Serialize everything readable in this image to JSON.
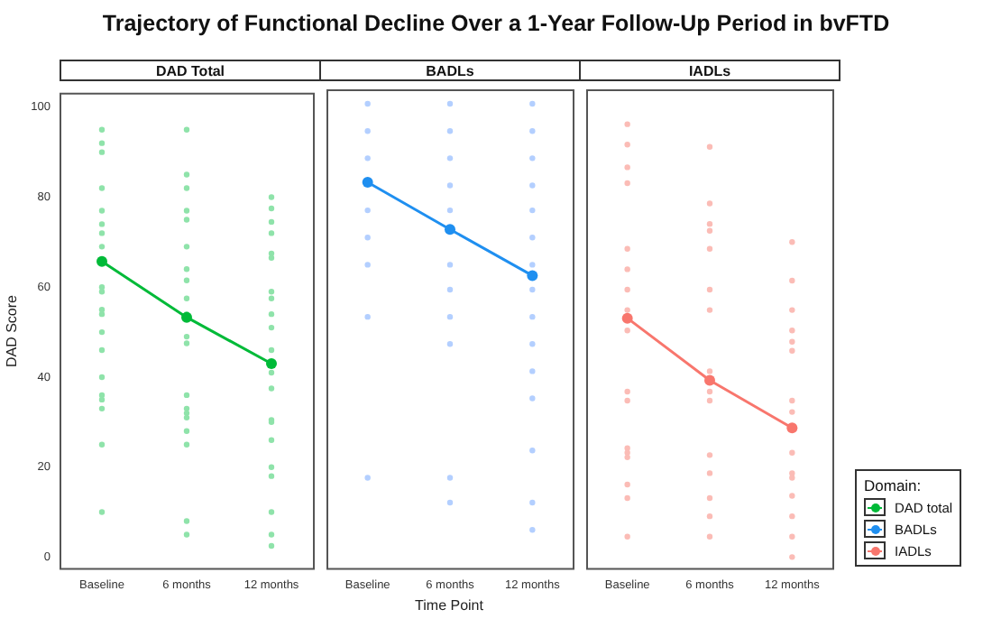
{
  "chart_data": [
    {
      "type": "line",
      "title": "Trajectory of Functional Decline Over a 1-Year Follow-Up Period in bvFTD",
      "subtitle": "DAD Total",
      "ylabel": "DAD Score",
      "categories": [
        "Baseline",
        "6 months",
        "12 months"
      ],
      "ylim": [
        -2.6,
        103
      ],
      "yticks": [
        0,
        20,
        40,
        60,
        80,
        100
      ],
      "marker": "circle",
      "series": [
        {
          "type": "scatter",
          "color": "#8fe3aa",
          "x": [
            "Baseline",
            "Baseline",
            "Baseline",
            "Baseline",
            "Baseline",
            "Baseline",
            "Baseline",
            "Baseline",
            "Baseline",
            "Baseline",
            "Baseline",
            "Baseline",
            "Baseline",
            "Baseline",
            "Baseline",
            "Baseline",
            "Baseline",
            "Baseline",
            "Baseline",
            "Baseline",
            "6 months",
            "6 months",
            "6 months",
            "6 months",
            "6 months",
            "6 months",
            "6 months",
            "6 months",
            "6 months",
            "6 months",
            "6 months",
            "6 months",
            "6 months",
            "6 months",
            "6 months",
            "6 months",
            "6 months",
            "6 months",
            "6 months",
            "6 months",
            "12 months",
            "12 months",
            "12 months",
            "12 months",
            "12 months",
            "12 months",
            "12 months",
            "12 months",
            "12 months",
            "12 months",
            "12 months",
            "12 months",
            "12 months",
            "12 months",
            "12 months",
            "12 months",
            "12 months",
            "12 months",
            "12 months",
            "12 months",
            "12 months"
          ],
          "values": [
            95,
            92,
            90,
            82,
            77,
            74,
            72,
            69,
            60,
            59,
            55,
            54,
            50,
            46,
            40,
            36,
            35,
            33,
            25,
            10,
            95,
            85,
            82,
            77,
            75,
            69,
            64,
            61.5,
            57.5,
            54,
            49,
            47.5,
            36,
            33,
            32,
            31,
            28,
            25,
            8,
            5,
            80,
            77.5,
            74.5,
            72,
            67.5,
            66.5,
            59,
            57.5,
            54,
            51,
            46,
            41,
            37.5,
            30.5,
            30,
            26,
            20,
            18,
            10,
            5,
            2.5
          ]
        },
        {
          "type": "line",
          "name": "DAD total",
          "color": "#00ba38",
          "values": [
            65.7,
            53.3,
            43
          ]
        }
      ]
    },
    {
      "type": "line",
      "subtitle": "BADLs",
      "xlabel": "Time Point",
      "categories": [
        "Baseline",
        "6 months",
        "12 months"
      ],
      "ylim": [
        -2.6,
        103
      ],
      "yticks": [
        0,
        20,
        40,
        60,
        80,
        100
      ],
      "tick_labels": "x",
      "marker": "circle",
      "series": [
        {
          "type": "scatter",
          "color": "#b3cfff",
          "x": [
            "Baseline",
            "Baseline",
            "Baseline",
            "Baseline",
            "Baseline",
            "Baseline",
            "Baseline",
            "Baseline",
            "6 months",
            "6 months",
            "6 months",
            "6 months",
            "6 months",
            "6 months",
            "6 months",
            "6 months",
            "6 months",
            "6 months",
            "6 months",
            "12 months",
            "12 months",
            "12 months",
            "12 months",
            "12 months",
            "12 months",
            "12 months",
            "12 months",
            "12 months",
            "12 months",
            "12 months",
            "12 months",
            "12 months",
            "12 months",
            "12 months"
          ],
          "values": [
            100,
            94,
            88,
            76.5,
            70.5,
            64.5,
            53,
            17.5,
            100,
            94,
            88,
            82,
            76.5,
            64.5,
            59,
            53,
            47,
            17.5,
            12,
            100,
            94,
            88,
            82,
            76.5,
            70.5,
            64.5,
            59,
            53,
            47,
            41,
            35,
            23.5,
            12,
            6
          ]
        },
        {
          "type": "line",
          "name": "BADLs",
          "color": "#1f8ff0",
          "values": [
            82.7,
            72.3,
            62.1
          ]
        }
      ]
    },
    {
      "type": "line",
      "subtitle": "IADLs",
      "legend_title": "Domain:",
      "legend": "right",
      "categories": [
        "Baseline",
        "6 months",
        "12 months"
      ],
      "ylim": [
        -2.6,
        103
      ],
      "yticks": [
        0,
        20,
        40,
        60,
        80,
        100
      ],
      "tick_labels": "x",
      "marker": "circle",
      "series": [
        {
          "type": "scatter",
          "color": "#fbbcb6",
          "x": [
            "Baseline",
            "Baseline",
            "Baseline",
            "Baseline",
            "Baseline",
            "Baseline",
            "Baseline",
            "Baseline",
            "Baseline",
            "Baseline",
            "Baseline",
            "Baseline",
            "Baseline",
            "Baseline",
            "Baseline",
            "Baseline",
            "Baseline",
            "6 months",
            "6 months",
            "6 months",
            "6 months",
            "6 months",
            "6 months",
            "6 months",
            "6 months",
            "6 months",
            "6 months",
            "6 months",
            "6 months",
            "6 months",
            "6 months",
            "6 months",
            "6 months",
            "12 months",
            "12 months",
            "12 months",
            "12 months",
            "12 months",
            "12 months",
            "12 months",
            "12 months",
            "12 months",
            "12 months",
            "12 months",
            "12 months",
            "12 months",
            "12 months",
            "12 months"
          ],
          "values": [
            95.5,
            91,
            86,
            82.5,
            68,
            63.5,
            59,
            54.5,
            50,
            36.5,
            34.5,
            24,
            22,
            16,
            13,
            4.5,
            23,
            90.5,
            78,
            73.5,
            72,
            68,
            59,
            54.5,
            41,
            36.5,
            34.5,
            22.5,
            18.5,
            null,
            13,
            9,
            4.5,
            69.5,
            61,
            54.5,
            50,
            47.5,
            45.5,
            34.5,
            32,
            23,
            18.5,
            17.5,
            13.5,
            9,
            4.5,
            0
          ]
        },
        {
          "type": "line",
          "name": "IADLs",
          "color": "#f8766d",
          "values": [
            52.7,
            39,
            28.5
          ]
        }
      ]
    }
  ]
}
